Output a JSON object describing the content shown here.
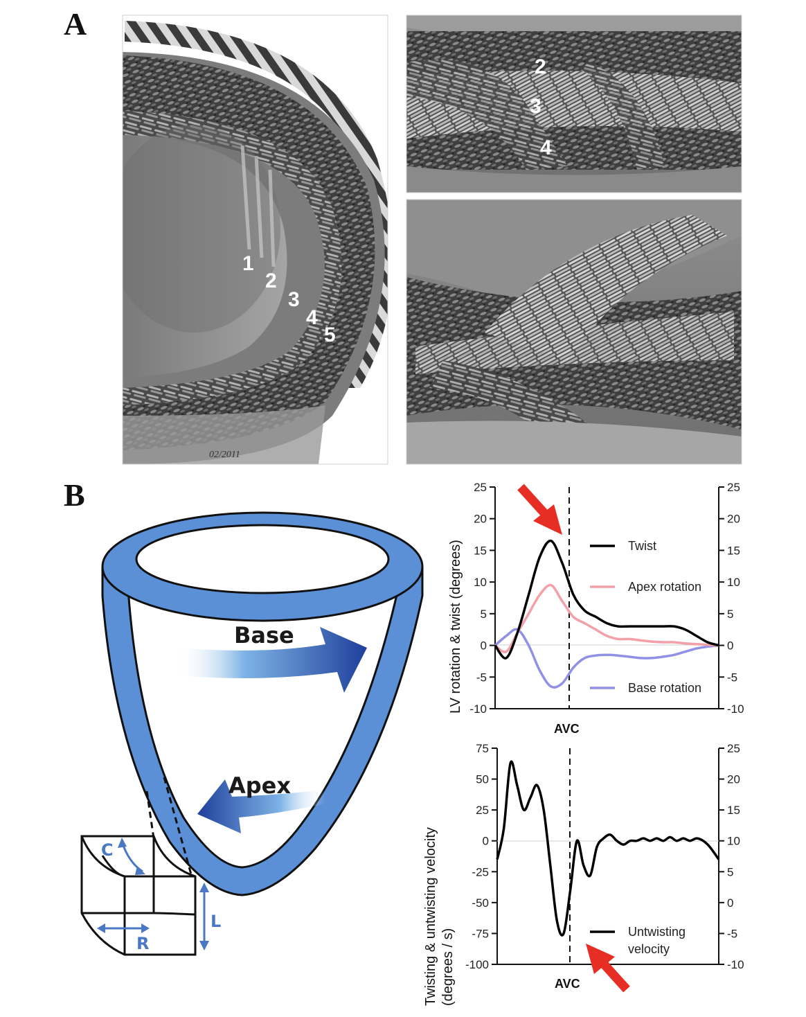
{
  "panels": {
    "a_label": "A",
    "b_label": "B"
  },
  "panel_a": {
    "main_layers": [
      "1",
      "2",
      "3",
      "4",
      "5"
    ],
    "top_right_layers": [
      "2",
      "3",
      "4"
    ],
    "signature": "02/2011"
  },
  "heart": {
    "base_label": "Base",
    "apex_label": "Apex",
    "cube_c": "C",
    "cube_r": "R",
    "cube_l": "L",
    "wall_color": "#5b8fd6",
    "arrow_color": "#1f3f9c"
  },
  "chart_data": [
    {
      "type": "line",
      "ylabel": "LV rotation & twist (degrees)",
      "marker_label": "AVC",
      "ylim": [
        -10,
        25
      ],
      "yticks": [
        -10,
        -5,
        0,
        5,
        10,
        15,
        20,
        25
      ],
      "right_ylim": [
        -10,
        25
      ],
      "right_yticks": [
        -10,
        -5,
        0,
        5,
        10,
        15,
        20,
        25
      ],
      "series": [
        {
          "name": "Twist",
          "color": "#000000",
          "x": [
            0,
            5,
            10,
            15,
            20,
            25,
            30,
            35,
            40,
            45,
            50,
            55,
            60,
            65,
            70,
            75,
            80,
            85,
            90,
            95,
            100
          ],
          "y": [
            0,
            -2,
            2,
            8,
            14,
            16.5,
            13,
            8,
            5.5,
            4.5,
            3.5,
            3,
            3,
            3,
            3,
            3,
            3,
            2.5,
            1.5,
            0.5,
            0
          ]
        },
        {
          "name": "Apex rotation",
          "color": "#f4a0a8",
          "x": [
            0,
            5,
            10,
            15,
            20,
            25,
            30,
            35,
            40,
            45,
            50,
            55,
            60,
            65,
            70,
            75,
            80,
            85,
            90,
            95,
            100
          ],
          "y": [
            0,
            -1,
            2,
            5,
            8,
            9.5,
            7,
            4.5,
            3.5,
            2.5,
            1.5,
            1,
            1,
            0.8,
            0.6,
            0.5,
            0.5,
            0.3,
            0.2,
            0.1,
            0
          ]
        },
        {
          "name": "Base rotation",
          "color": "#9090e6",
          "x": [
            0,
            5,
            10,
            15,
            20,
            25,
            30,
            35,
            40,
            45,
            50,
            55,
            60,
            65,
            70,
            75,
            80,
            85,
            90,
            95,
            100
          ],
          "y": [
            0,
            1.5,
            2.5,
            0,
            -4,
            -6.5,
            -6,
            -3.5,
            -2,
            -1.6,
            -1.5,
            -1.6,
            -1.8,
            -2,
            -2,
            -1.8,
            -1.5,
            -1,
            -0.5,
            -0.2,
            0
          ]
        }
      ]
    },
    {
      "type": "line",
      "ylabel": "Twisting & untwisting velocity (degrees / s)",
      "marker_label": "AVC",
      "ylim": [
        -100,
        75
      ],
      "yticks": [
        -100,
        -75,
        -50,
        -25,
        0,
        25,
        50,
        75
      ],
      "right_ylim": [
        -10,
        25
      ],
      "right_yticks": [
        -10,
        -5,
        0,
        5,
        10,
        15,
        20,
        25
      ],
      "series": [
        {
          "name": "Untwisting velocity",
          "color": "#000000",
          "x": [
            0,
            3,
            6,
            9,
            12,
            15,
            18,
            21,
            24,
            27,
            30,
            33,
            36,
            39,
            42,
            45,
            48,
            51,
            54,
            57,
            60,
            63,
            66,
            69,
            72,
            75,
            78,
            81,
            84,
            87,
            90,
            93,
            96,
            100
          ],
          "y": [
            -15,
            10,
            63,
            45,
            25,
            35,
            45,
            25,
            -20,
            -65,
            -75,
            -40,
            0,
            -20,
            -28,
            -5,
            2,
            5,
            0,
            -3,
            0,
            0,
            2,
            0,
            2,
            0,
            3,
            0,
            2,
            0,
            2,
            0,
            -5,
            -15
          ]
        }
      ]
    }
  ]
}
